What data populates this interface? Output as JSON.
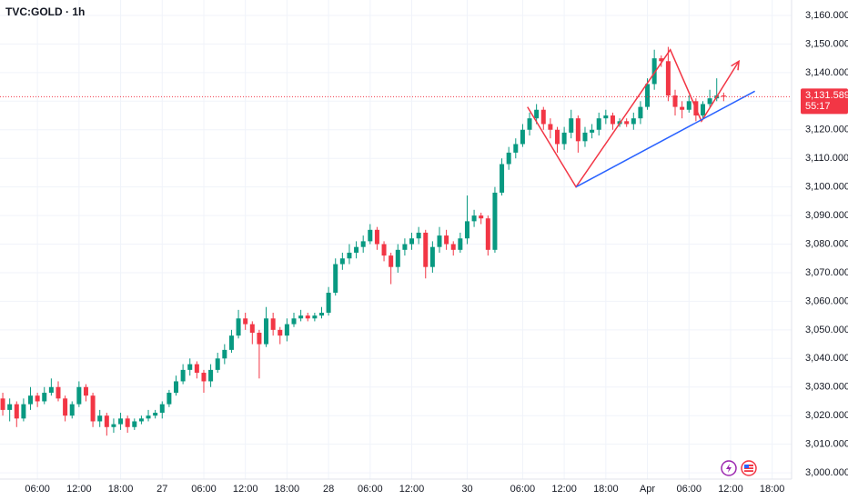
{
  "chart_data": {
    "type": "candlestick",
    "title": "TVC:GOLD · 1h",
    "up_color": "#089981",
    "down_color": "#f23645",
    "grid": true,
    "xlim": [
      -0.4,
      113.8
    ],
    "ylim": [
      2997.8,
      3165.4
    ],
    "xticks": [
      {
        "value": 5,
        "label": "06:00"
      },
      {
        "value": 11,
        "label": "12:00"
      },
      {
        "value": 17,
        "label": "18:00"
      },
      {
        "value": 23,
        "label": "27"
      },
      {
        "value": 29,
        "label": "06:00"
      },
      {
        "value": 35,
        "label": "12:00"
      },
      {
        "value": 41,
        "label": "18:00"
      },
      {
        "value": 47,
        "label": "28"
      },
      {
        "value": 53,
        "label": "06:00"
      },
      {
        "value": 59,
        "label": "12:00"
      },
      {
        "value": 67,
        "label": "30"
      },
      {
        "value": 75,
        "label": "06:00"
      },
      {
        "value": 81,
        "label": "12:00"
      },
      {
        "value": 87,
        "label": "18:00"
      },
      {
        "value": 93,
        "label": "Apr"
      },
      {
        "value": 99,
        "label": "06:00"
      },
      {
        "value": 105,
        "label": "12:00"
      },
      {
        "value": 111,
        "label": "18:00"
      }
    ],
    "yticks": [
      {
        "value": 3000,
        "label": "3,000.000"
      },
      {
        "value": 3010,
        "label": "3,010.000"
      },
      {
        "value": 3020,
        "label": "3,020.000"
      },
      {
        "value": 3030,
        "label": "3,030.000"
      },
      {
        "value": 3040,
        "label": "3,040.000"
      },
      {
        "value": 3050,
        "label": "3,050.000"
      },
      {
        "value": 3060,
        "label": "3,060.000"
      },
      {
        "value": 3070,
        "label": "3,070.000"
      },
      {
        "value": 3080,
        "label": "3,080.000"
      },
      {
        "value": 3090,
        "label": "3,090.000"
      },
      {
        "value": 3100,
        "label": "3,100.000"
      },
      {
        "value": 3110,
        "label": "3,110.000"
      },
      {
        "value": 3120,
        "label": "3,120.000"
      },
      {
        "value": 3130,
        "label": "3,130.000"
      },
      {
        "value": 3140,
        "label": "3,140.000"
      },
      {
        "value": 3150,
        "label": "3,150.000"
      },
      {
        "value": 3160,
        "label": "3,160.000"
      }
    ],
    "open": [
      3026,
      3022,
      3024,
      3019,
      3024,
      3027,
      3025,
      3028,
      3030,
      3026,
      3020,
      3024,
      3030,
      3027,
      3018,
      3020,
      3016,
      3017,
      3019,
      3016,
      3018,
      3019,
      3020,
      3021,
      3024,
      3028,
      3032,
      3036,
      3038,
      3035,
      3032,
      3036,
      3040,
      3043,
      3048,
      3054,
      3052,
      3049,
      3045,
      3054,
      3050,
      3048,
      3052,
      3054,
      3055,
      3054,
      3055,
      3056,
      3063,
      3073,
      3075,
      3077,
      3079,
      3081,
      3085,
      3080,
      3076,
      3072,
      3078,
      3080,
      3082,
      3084,
      3072,
      3079,
      3083,
      3080,
      3078,
      3082,
      3088,
      3090,
      3089,
      3078,
      3098,
      3108,
      3112,
      3115,
      3120,
      3124,
      3127,
      3122,
      3120,
      3115,
      3119,
      3124,
      3116,
      3119,
      3120,
      3124,
      3125,
      3122,
      3123,
      3122,
      3124,
      3128,
      3136,
      3145,
      3144,
      3132,
      3128,
      3127,
      3130,
      3125,
      3129,
      3131,
      3132
    ],
    "high": [
      3028,
      3026,
      3025,
      3026,
      3030,
      3028,
      3030,
      3033,
      3032,
      3027,
      3025,
      3032,
      3031,
      3028,
      3022,
      3021,
      3019,
      3021,
      3020,
      3019,
      3020,
      3022,
      3022,
      3025,
      3029,
      3034,
      3038,
      3040,
      3039,
      3036,
      3038,
      3042,
      3045,
      3050,
      3057,
      3056,
      3053,
      3050,
      3058,
      3056,
      3051,
      3054,
      3056,
      3057,
      3056,
      3056,
      3058,
      3065,
      3075,
      3077,
      3080,
      3081,
      3083,
      3087,
      3086,
      3081,
      3077,
      3080,
      3082,
      3084,
      3086,
      3085,
      3081,
      3086,
      3085,
      3081,
      3084,
      3097,
      3092,
      3091,
      3090,
      3100,
      3110,
      3114,
      3117,
      3122,
      3126,
      3129,
      3128,
      3124,
      3121,
      3121,
      3127,
      3125,
      3121,
      3122,
      3126,
      3127,
      3126,
      3124,
      3124,
      3126,
      3130,
      3138,
      3148,
      3146,
      3149,
      3134,
      3130,
      3132,
      3131,
      3130,
      3134,
      3138,
      3133
    ],
    "low": [
      3020,
      3018,
      3016,
      3018,
      3022,
      3023,
      3024,
      3027,
      3025,
      3018,
      3019,
      3023,
      3025,
      3016,
      3016,
      3013,
      3014,
      3015,
      3014,
      3015,
      3017,
      3018,
      3019,
      3019,
      3023,
      3027,
      3031,
      3034,
      3033,
      3028,
      3030,
      3035,
      3038,
      3042,
      3047,
      3050,
      3045,
      3033,
      3044,
      3048,
      3045,
      3046,
      3051,
      3053,
      3053,
      3053,
      3054,
      3055,
      3062,
      3071,
      3073,
      3075,
      3077,
      3080,
      3078,
      3074,
      3066,
      3070,
      3076,
      3078,
      3080,
      3068,
      3070,
      3077,
      3078,
      3076,
      3077,
      3080,
      3086,
      3087,
      3076,
      3077,
      3097,
      3106,
      3110,
      3114,
      3118,
      3122,
      3120,
      3117,
      3112,
      3113,
      3117,
      3112,
      3114,
      3117,
      3118,
      3122,
      3120,
      3121,
      3121,
      3120,
      3122,
      3127,
      3134,
      3142,
      3130,
      3125,
      3124,
      3126,
      3123,
      3124,
      3128,
      3130,
      3130
    ],
    "close": [
      3022,
      3024,
      3019,
      3024,
      3027,
      3025,
      3028,
      3030,
      3026,
      3020,
      3024,
      3030,
      3027,
      3018,
      3020,
      3016,
      3017,
      3019,
      3016,
      3018,
      3019,
      3020,
      3021,
      3024,
      3028,
      3032,
      3036,
      3038,
      3035,
      3032,
      3036,
      3040,
      3043,
      3048,
      3054,
      3052,
      3049,
      3045,
      3054,
      3050,
      3048,
      3052,
      3054,
      3055,
      3054,
      3055,
      3056,
      3063,
      3073,
      3075,
      3077,
      3079,
      3081,
      3085,
      3080,
      3076,
      3072,
      3078,
      3080,
      3082,
      3084,
      3072,
      3079,
      3083,
      3080,
      3078,
      3082,
      3088,
      3090,
      3089,
      3078,
      3098,
      3108,
      3112,
      3115,
      3120,
      3124,
      3127,
      3122,
      3120,
      3115,
      3119,
      3124,
      3116,
      3119,
      3120,
      3124,
      3125,
      3122,
      3123,
      3122,
      3124,
      3128,
      3136,
      3145,
      3144,
      3132,
      3128,
      3127,
      3130,
      3125,
      3129,
      3131,
      3132,
      3131.589
    ],
    "last_price": {
      "value": 3131.589,
      "label": "3,131.589"
    },
    "countdown": "55:17",
    "drawings": [
      {
        "color": "#f23645",
        "arrow": true,
        "x": [
          75.7,
          82.7,
          96.3,
          100.8,
          106.2
        ],
        "y": [
          3128,
          3100,
          3148,
          3123,
          3144
        ]
      },
      {
        "color": "#2962ff",
        "arrow": false,
        "x": [
          82.7,
          108.5
        ],
        "y": [
          3100,
          3133.5
        ]
      }
    ]
  }
}
